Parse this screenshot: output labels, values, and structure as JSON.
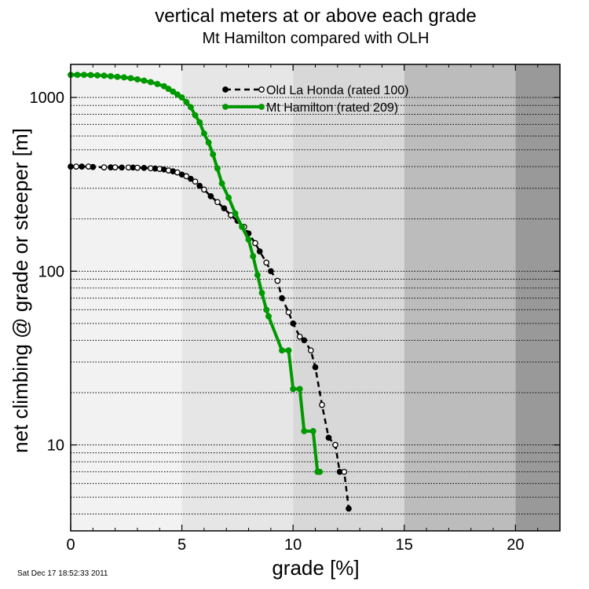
{
  "chart_data": {
    "type": "line",
    "title": "vertical meters at or above each grade",
    "subtitle": "Mt Hamilton compared with OLH",
    "xlabel": "grade [%]",
    "ylabel": "net climbing @ grade or steeper [m]",
    "xlim": [
      0,
      22
    ],
    "ylim": [
      3.2,
      1550
    ],
    "y_scale": "log",
    "x_ticks": [
      0,
      5,
      10,
      15,
      20
    ],
    "x_tick_labels": [
      "0",
      "5",
      "10",
      "15",
      "20"
    ],
    "y_ticks": [
      10,
      100,
      1000
    ],
    "y_tick_labels": [
      "10",
      "100",
      "1000"
    ],
    "grid": "horizontal log grid (dotted at 1,2,...,9 ×10^n)",
    "background_bands": [
      {
        "from": 0,
        "to": 5,
        "color": "#f2f2f2"
      },
      {
        "from": 5,
        "to": 10,
        "color": "#e6e6e6"
      },
      {
        "from": 10,
        "to": 15,
        "color": "#d8d8d8"
      },
      {
        "from": 15,
        "to": 20,
        "color": "#bcbcbc"
      },
      {
        "from": 20,
        "to": 22,
        "color": "#999999"
      }
    ],
    "legend_position": "top-right",
    "series": [
      {
        "name": "Old La Honda (rated 100)",
        "color": "#000000",
        "line_style": "dashed",
        "marker": "open-circle",
        "x": [
          0,
          0.25,
          0.5,
          0.8,
          1.0,
          1.5,
          1.8,
          2.0,
          2.3,
          2.6,
          2.8,
          3.0,
          3.3,
          3.6,
          3.8,
          4.0,
          4.2,
          4.4,
          4.6,
          4.8,
          5.0,
          5.2,
          5.4,
          5.6,
          5.8,
          6.0,
          6.3,
          6.6,
          6.9,
          7.2,
          7.5,
          7.8,
          8.0,
          8.3,
          8.5,
          8.8,
          9.0,
          9.3,
          9.5,
          9.8,
          10.0,
          10.3,
          10.5,
          10.8,
          11.0,
          11.3,
          11.6,
          11.9,
          12.1,
          12.3,
          12.5
        ],
        "y": [
          400,
          400,
          400,
          400,
          398,
          396,
          396,
          396,
          395,
          395,
          395,
          394,
          393,
          391,
          390,
          388,
          385,
          380,
          376,
          370,
          360,
          352,
          340,
          328,
          310,
          295,
          270,
          250,
          230,
          210,
          195,
          180,
          165,
          145,
          130,
          112,
          100,
          88,
          70,
          58,
          50,
          42,
          40,
          35,
          28,
          17,
          11,
          10,
          7,
          7,
          4.3
        ]
      },
      {
        "name": "Mt Hamilton (rated 209)",
        "color": "#009900",
        "line_style": "solid",
        "marker": "filled-circle",
        "x": [
          0,
          0.3,
          0.6,
          0.9,
          1.2,
          1.5,
          1.8,
          2.1,
          2.4,
          2.7,
          3.0,
          3.3,
          3.6,
          3.9,
          4.2,
          4.4,
          4.6,
          4.8,
          5.0,
          5.2,
          5.4,
          5.6,
          5.8,
          6.0,
          6.2,
          6.4,
          6.6,
          6.8,
          7.1,
          7.4,
          7.7,
          8.0,
          8.2,
          8.4,
          8.6,
          8.8,
          8.9,
          9.5,
          9.8,
          10.0,
          10.3,
          10.5,
          10.9,
          11.1,
          11.2
        ],
        "y": [
          1350,
          1350,
          1350,
          1345,
          1340,
          1335,
          1325,
          1315,
          1305,
          1290,
          1270,
          1250,
          1225,
          1195,
          1160,
          1120,
          1080,
          1040,
          1000,
          940,
          880,
          790,
          720,
          620,
          550,
          470,
          390,
          320,
          265,
          215,
          180,
          152,
          122,
          95,
          75,
          60,
          55,
          35,
          35,
          21,
          21,
          12,
          12,
          7,
          7
        ]
      }
    ],
    "timestamp": "Sat Dec 17 18:52:33 2011"
  }
}
